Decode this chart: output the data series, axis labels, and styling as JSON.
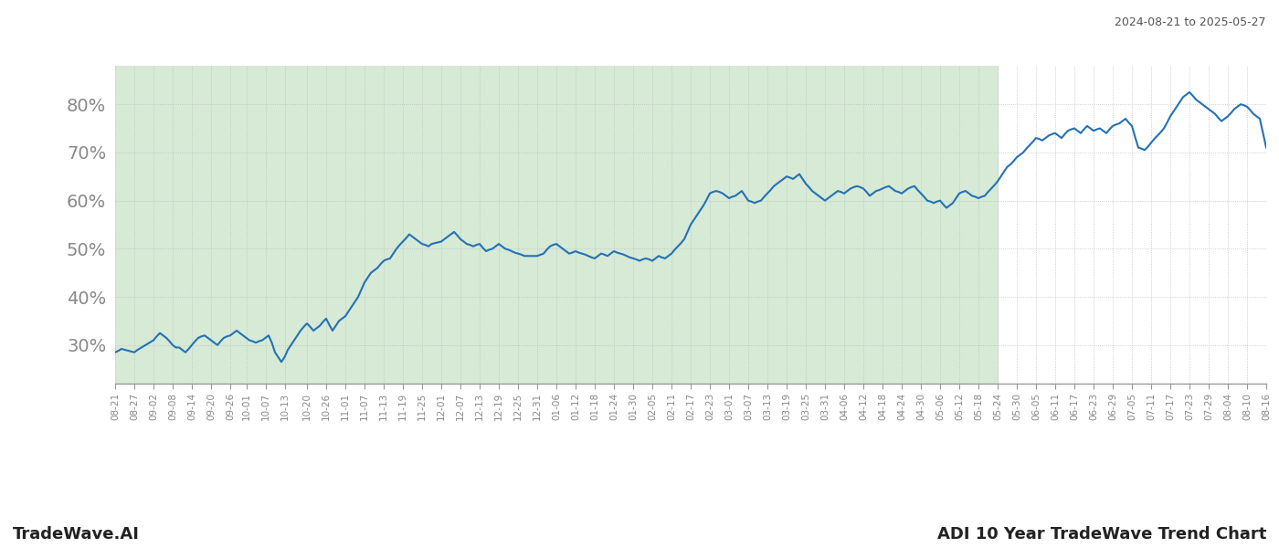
{
  "title_top_right": "2024-08-21 to 2025-05-27",
  "title_bottom_left": "TradeWave.AI",
  "title_bottom_right": "ADI 10 Year TradeWave Trend Chart",
  "line_color": "#2471b5",
  "line_width": 1.5,
  "bg_color": "#ffffff",
  "shaded_region_color": "#d6ead6",
  "shaded_start": "2024-08-21",
  "shaded_end": "2025-05-24",
  "ylim": [
    22,
    88
  ],
  "yticks": [
    30,
    40,
    50,
    60,
    70,
    80
  ],
  "ytick_fontsize": 14,
  "grid_color": "#bbbbbb",
  "grid_style": ":",
  "grid_alpha": 0.9,
  "tick_label_color": "#888888",
  "xtick_fontsize": 7.5,
  "data": [
    [
      "2024-08-21",
      28.5
    ],
    [
      "2024-08-22",
      28.8
    ],
    [
      "2024-08-23",
      29.2
    ],
    [
      "2024-08-27",
      28.5
    ],
    [
      "2024-08-28",
      29.0
    ],
    [
      "2024-09-02",
      31.0
    ],
    [
      "2024-09-03",
      31.8
    ],
    [
      "2024-09-04",
      32.5
    ],
    [
      "2024-09-05",
      32.0
    ],
    [
      "2024-09-06",
      31.5
    ],
    [
      "2024-09-07",
      30.8
    ],
    [
      "2024-09-08",
      30.0
    ],
    [
      "2024-09-09",
      29.5
    ],
    [
      "2024-09-10",
      29.5
    ],
    [
      "2024-09-11",
      29.0
    ],
    [
      "2024-09-12",
      28.5
    ],
    [
      "2024-09-13",
      29.2
    ],
    [
      "2024-09-14",
      30.0
    ],
    [
      "2024-09-15",
      30.8
    ],
    [
      "2024-09-16",
      31.5
    ],
    [
      "2024-09-17",
      31.8
    ],
    [
      "2024-09-18",
      32.0
    ],
    [
      "2024-09-19",
      31.5
    ],
    [
      "2024-09-20",
      31.0
    ],
    [
      "2024-09-21",
      30.5
    ],
    [
      "2024-09-22",
      30.0
    ],
    [
      "2024-09-23",
      30.8
    ],
    [
      "2024-09-24",
      31.5
    ],
    [
      "2024-09-25",
      31.8
    ],
    [
      "2024-09-26",
      32.0
    ],
    [
      "2024-09-27",
      32.5
    ],
    [
      "2024-09-28",
      33.0
    ],
    [
      "2024-09-29",
      32.5
    ],
    [
      "2024-09-30",
      32.0
    ],
    [
      "2024-10-01",
      31.5
    ],
    [
      "2024-10-02",
      31.0
    ],
    [
      "2024-10-03",
      30.8
    ],
    [
      "2024-10-04",
      30.5
    ],
    [
      "2024-10-05",
      30.8
    ],
    [
      "2024-10-06",
      31.0
    ],
    [
      "2024-10-07",
      31.5
    ],
    [
      "2024-10-08",
      32.0
    ],
    [
      "2024-10-09",
      30.5
    ],
    [
      "2024-10-10",
      28.5
    ],
    [
      "2024-10-11",
      27.5
    ],
    [
      "2024-10-12",
      26.5
    ],
    [
      "2024-10-13",
      27.5
    ],
    [
      "2024-10-14",
      29.0
    ],
    [
      "2024-10-15",
      30.0
    ],
    [
      "2024-10-16",
      31.0
    ],
    [
      "2024-10-17",
      32.0
    ],
    [
      "2024-10-18",
      33.0
    ],
    [
      "2024-10-19",
      33.8
    ],
    [
      "2024-10-20",
      34.5
    ],
    [
      "2024-10-21",
      33.8
    ],
    [
      "2024-10-22",
      33.0
    ],
    [
      "2024-10-23",
      33.5
    ],
    [
      "2024-10-24",
      34.0
    ],
    [
      "2024-10-25",
      34.8
    ],
    [
      "2024-10-26",
      35.5
    ],
    [
      "2024-10-27",
      34.2
    ],
    [
      "2024-10-28",
      33.0
    ],
    [
      "2024-10-29",
      34.0
    ],
    [
      "2024-10-30",
      35.0
    ],
    [
      "2024-11-01",
      36.0
    ],
    [
      "2024-11-02",
      37.0
    ],
    [
      "2024-11-03",
      38.0
    ],
    [
      "2024-11-04",
      39.0
    ],
    [
      "2024-11-05",
      40.0
    ],
    [
      "2024-11-06",
      41.5
    ],
    [
      "2024-11-07",
      43.0
    ],
    [
      "2024-11-08",
      44.0
    ],
    [
      "2024-11-09",
      45.0
    ],
    [
      "2024-11-10",
      45.5
    ],
    [
      "2024-11-11",
      46.0
    ],
    [
      "2024-11-12",
      46.8
    ],
    [
      "2024-11-13",
      47.5
    ],
    [
      "2024-11-14",
      47.8
    ],
    [
      "2024-11-15",
      48.0
    ],
    [
      "2024-11-16",
      49.0
    ],
    [
      "2024-11-17",
      50.0
    ],
    [
      "2024-11-18",
      50.8
    ],
    [
      "2024-11-19",
      51.5
    ],
    [
      "2024-11-20",
      52.2
    ],
    [
      "2024-11-21",
      53.0
    ],
    [
      "2024-11-22",
      52.5
    ],
    [
      "2024-11-23",
      52.0
    ],
    [
      "2024-11-24",
      51.5
    ],
    [
      "2024-11-25",
      51.0
    ],
    [
      "2024-11-26",
      50.8
    ],
    [
      "2024-11-27",
      50.5
    ],
    [
      "2024-11-28",
      51.0
    ],
    [
      "2024-12-01",
      51.5
    ],
    [
      "2024-12-02",
      52.0
    ],
    [
      "2024-12-03",
      52.5
    ],
    [
      "2024-12-04",
      53.0
    ],
    [
      "2024-12-05",
      53.5
    ],
    [
      "2024-12-06",
      52.8
    ],
    [
      "2024-12-07",
      52.0
    ],
    [
      "2024-12-08",
      51.5
    ],
    [
      "2024-12-09",
      51.0
    ],
    [
      "2024-12-10",
      50.8
    ],
    [
      "2024-12-11",
      50.5
    ],
    [
      "2024-12-12",
      50.8
    ],
    [
      "2024-12-13",
      51.0
    ],
    [
      "2024-12-14",
      50.2
    ],
    [
      "2024-12-15",
      49.5
    ],
    [
      "2024-12-16",
      49.8
    ],
    [
      "2024-12-17",
      50.0
    ],
    [
      "2024-12-18",
      50.5
    ],
    [
      "2024-12-19",
      51.0
    ],
    [
      "2024-12-20",
      50.5
    ],
    [
      "2024-12-21",
      50.0
    ],
    [
      "2024-12-22",
      49.8
    ],
    [
      "2024-12-23",
      49.5
    ],
    [
      "2024-12-24",
      49.2
    ],
    [
      "2024-12-25",
      49.0
    ],
    [
      "2024-12-26",
      48.8
    ],
    [
      "2024-12-27",
      48.5
    ],
    [
      "2024-12-28",
      48.5
    ],
    [
      "2024-12-29",
      48.5
    ],
    [
      "2024-12-31",
      48.5
    ],
    [
      "2025-01-02",
      49.0
    ],
    [
      "2025-01-03",
      49.8
    ],
    [
      "2025-01-04",
      50.5
    ],
    [
      "2025-01-05",
      50.8
    ],
    [
      "2025-01-06",
      51.0
    ],
    [
      "2025-01-07",
      50.5
    ],
    [
      "2025-01-08",
      50.0
    ],
    [
      "2025-01-09",
      49.5
    ],
    [
      "2025-01-10",
      49.0
    ],
    [
      "2025-01-11",
      49.2
    ],
    [
      "2025-01-12",
      49.5
    ],
    [
      "2025-01-13",
      49.2
    ],
    [
      "2025-01-14",
      49.0
    ],
    [
      "2025-01-15",
      48.8
    ],
    [
      "2025-01-16",
      48.5
    ],
    [
      "2025-01-17",
      48.2
    ],
    [
      "2025-01-18",
      48.0
    ],
    [
      "2025-01-19",
      48.5
    ],
    [
      "2025-01-20",
      49.0
    ],
    [
      "2025-01-21",
      48.8
    ],
    [
      "2025-01-22",
      48.5
    ],
    [
      "2025-01-23",
      49.0
    ],
    [
      "2025-01-24",
      49.5
    ],
    [
      "2025-01-25",
      49.2
    ],
    [
      "2025-01-26",
      49.0
    ],
    [
      "2025-01-27",
      48.8
    ],
    [
      "2025-01-28",
      48.5
    ],
    [
      "2025-01-29",
      48.2
    ],
    [
      "2025-01-30",
      48.0
    ],
    [
      "2025-01-31",
      47.8
    ],
    [
      "2025-02-01",
      47.5
    ],
    [
      "2025-02-02",
      47.8
    ],
    [
      "2025-02-03",
      48.0
    ],
    [
      "2025-02-04",
      47.8
    ],
    [
      "2025-02-05",
      47.5
    ],
    [
      "2025-02-06",
      48.0
    ],
    [
      "2025-02-07",
      48.5
    ],
    [
      "2025-02-08",
      48.2
    ],
    [
      "2025-02-09",
      48.0
    ],
    [
      "2025-02-10",
      48.5
    ],
    [
      "2025-02-11",
      49.0
    ],
    [
      "2025-02-12",
      49.8
    ],
    [
      "2025-02-13",
      50.5
    ],
    [
      "2025-02-14",
      51.2
    ],
    [
      "2025-02-15",
      52.0
    ],
    [
      "2025-02-16",
      53.5
    ],
    [
      "2025-02-17",
      55.0
    ],
    [
      "2025-02-18",
      56.0
    ],
    [
      "2025-02-19",
      57.0
    ],
    [
      "2025-02-20",
      58.0
    ],
    [
      "2025-02-21",
      59.0
    ],
    [
      "2025-02-22",
      60.2
    ],
    [
      "2025-02-23",
      61.5
    ],
    [
      "2025-02-24",
      61.8
    ],
    [
      "2025-02-25",
      62.0
    ],
    [
      "2025-02-26",
      61.8
    ],
    [
      "2025-02-27",
      61.5
    ],
    [
      "2025-02-28",
      61.0
    ],
    [
      "2025-03-01",
      60.5
    ],
    [
      "2025-03-02",
      60.8
    ],
    [
      "2025-03-03",
      61.0
    ],
    [
      "2025-03-04",
      61.5
    ],
    [
      "2025-03-05",
      62.0
    ],
    [
      "2025-03-06",
      61.0
    ],
    [
      "2025-03-07",
      60.0
    ],
    [
      "2025-03-08",
      59.8
    ],
    [
      "2025-03-09",
      59.5
    ],
    [
      "2025-03-10",
      59.8
    ],
    [
      "2025-03-11",
      60.0
    ],
    [
      "2025-03-12",
      60.8
    ],
    [
      "2025-03-13",
      61.5
    ],
    [
      "2025-03-14",
      62.2
    ],
    [
      "2025-03-15",
      63.0
    ],
    [
      "2025-03-16",
      63.5
    ],
    [
      "2025-03-17",
      64.0
    ],
    [
      "2025-03-18",
      64.5
    ],
    [
      "2025-03-19",
      65.0
    ],
    [
      "2025-03-20",
      64.8
    ],
    [
      "2025-03-21",
      64.5
    ],
    [
      "2025-03-22",
      65.0
    ],
    [
      "2025-03-23",
      65.5
    ],
    [
      "2025-03-24",
      64.5
    ],
    [
      "2025-03-25",
      63.5
    ],
    [
      "2025-03-26",
      62.8
    ],
    [
      "2025-03-27",
      62.0
    ],
    [
      "2025-03-28",
      61.5
    ],
    [
      "2025-03-29",
      61.0
    ],
    [
      "2025-03-30",
      60.5
    ],
    [
      "2025-03-31",
      60.0
    ],
    [
      "2025-04-01",
      60.5
    ],
    [
      "2025-04-02",
      61.0
    ],
    [
      "2025-04-03",
      61.5
    ],
    [
      "2025-04-04",
      62.0
    ],
    [
      "2025-04-05",
      61.8
    ],
    [
      "2025-04-06",
      61.5
    ],
    [
      "2025-04-07",
      62.0
    ],
    [
      "2025-04-08",
      62.5
    ],
    [
      "2025-04-09",
      62.8
    ],
    [
      "2025-04-10",
      63.0
    ],
    [
      "2025-04-11",
      62.8
    ],
    [
      "2025-04-12",
      62.5
    ],
    [
      "2025-04-13",
      61.8
    ],
    [
      "2025-04-14",
      61.0
    ],
    [
      "2025-04-15",
      61.5
    ],
    [
      "2025-04-16",
      62.0
    ],
    [
      "2025-04-17",
      62.2
    ],
    [
      "2025-04-18",
      62.5
    ],
    [
      "2025-04-19",
      62.8
    ],
    [
      "2025-04-20",
      63.0
    ],
    [
      "2025-04-21",
      62.5
    ],
    [
      "2025-04-22",
      62.0
    ],
    [
      "2025-04-23",
      61.8
    ],
    [
      "2025-04-24",
      61.5
    ],
    [
      "2025-04-25",
      62.0
    ],
    [
      "2025-04-26",
      62.5
    ],
    [
      "2025-04-27",
      62.8
    ],
    [
      "2025-04-28",
      63.0
    ],
    [
      "2025-04-29",
      62.2
    ],
    [
      "2025-04-30",
      61.5
    ],
    [
      "2025-05-01",
      60.8
    ],
    [
      "2025-05-02",
      60.0
    ],
    [
      "2025-05-03",
      59.8
    ],
    [
      "2025-05-04",
      59.5
    ],
    [
      "2025-05-05",
      59.8
    ],
    [
      "2025-05-06",
      60.0
    ],
    [
      "2025-05-07",
      59.2
    ],
    [
      "2025-05-08",
      58.5
    ],
    [
      "2025-05-09",
      59.0
    ],
    [
      "2025-05-10",
      59.5
    ],
    [
      "2025-05-11",
      60.5
    ],
    [
      "2025-05-12",
      61.5
    ],
    [
      "2025-05-13",
      61.8
    ],
    [
      "2025-05-14",
      62.0
    ],
    [
      "2025-05-15",
      61.5
    ],
    [
      "2025-05-16",
      61.0
    ],
    [
      "2025-05-17",
      60.8
    ],
    [
      "2025-05-18",
      60.5
    ],
    [
      "2025-05-19",
      60.8
    ],
    [
      "2025-05-20",
      61.0
    ],
    [
      "2025-05-21",
      61.8
    ],
    [
      "2025-05-22",
      62.5
    ],
    [
      "2025-05-23",
      63.2
    ],
    [
      "2025-05-24",
      64.0
    ],
    [
      "2025-05-25",
      65.0
    ],
    [
      "2025-05-26",
      66.0
    ],
    [
      "2025-05-27",
      67.0
    ],
    [
      "2025-05-28",
      67.5
    ],
    [
      "2025-05-29",
      68.2
    ],
    [
      "2025-05-30",
      69.0
    ],
    [
      "2025-06-01",
      70.0
    ],
    [
      "2025-06-02",
      70.8
    ],
    [
      "2025-06-03",
      71.5
    ],
    [
      "2025-06-04",
      72.2
    ],
    [
      "2025-06-05",
      73.0
    ],
    [
      "2025-06-06",
      72.8
    ],
    [
      "2025-06-07",
      72.5
    ],
    [
      "2025-06-08",
      73.0
    ],
    [
      "2025-06-09",
      73.5
    ],
    [
      "2025-06-10",
      73.8
    ],
    [
      "2025-06-11",
      74.0
    ],
    [
      "2025-06-12",
      73.5
    ],
    [
      "2025-06-13",
      73.0
    ],
    [
      "2025-06-14",
      73.8
    ],
    [
      "2025-06-15",
      74.5
    ],
    [
      "2025-06-16",
      74.8
    ],
    [
      "2025-06-17",
      75.0
    ],
    [
      "2025-06-18",
      74.5
    ],
    [
      "2025-06-19",
      74.0
    ],
    [
      "2025-06-20",
      74.8
    ],
    [
      "2025-06-21",
      75.5
    ],
    [
      "2025-06-22",
      75.0
    ],
    [
      "2025-06-23",
      74.5
    ],
    [
      "2025-06-24",
      74.8
    ],
    [
      "2025-06-25",
      75.0
    ],
    [
      "2025-06-26",
      74.5
    ],
    [
      "2025-06-27",
      74.0
    ],
    [
      "2025-06-28",
      74.8
    ],
    [
      "2025-06-29",
      75.5
    ],
    [
      "2025-06-30",
      75.8
    ],
    [
      "2025-07-01",
      76.0
    ],
    [
      "2025-07-02",
      76.5
    ],
    [
      "2025-07-03",
      77.0
    ],
    [
      "2025-07-04",
      76.2
    ],
    [
      "2025-07-05",
      75.5
    ],
    [
      "2025-07-06",
      73.2
    ],
    [
      "2025-07-07",
      71.0
    ],
    [
      "2025-07-08",
      70.8
    ],
    [
      "2025-07-09",
      70.5
    ],
    [
      "2025-07-10",
      71.2
    ],
    [
      "2025-07-11",
      72.0
    ],
    [
      "2025-07-12",
      72.8
    ],
    [
      "2025-07-13",
      73.5
    ],
    [
      "2025-07-14",
      74.2
    ],
    [
      "2025-07-15",
      75.0
    ],
    [
      "2025-07-16",
      76.2
    ],
    [
      "2025-07-17",
      77.5
    ],
    [
      "2025-07-18",
      78.5
    ],
    [
      "2025-07-19",
      79.5
    ],
    [
      "2025-07-20",
      80.5
    ],
    [
      "2025-07-21",
      81.5
    ],
    [
      "2025-07-22",
      82.0
    ],
    [
      "2025-07-23",
      82.5
    ],
    [
      "2025-07-24",
      81.8
    ],
    [
      "2025-07-25",
      81.0
    ],
    [
      "2025-07-26",
      80.5
    ],
    [
      "2025-07-27",
      80.0
    ],
    [
      "2025-07-28",
      79.5
    ],
    [
      "2025-07-29",
      79.0
    ],
    [
      "2025-07-30",
      78.5
    ],
    [
      "2025-07-31",
      78.0
    ],
    [
      "2025-08-01",
      77.2
    ],
    [
      "2025-08-02",
      76.5
    ],
    [
      "2025-08-03",
      77.0
    ],
    [
      "2025-08-04",
      77.5
    ],
    [
      "2025-08-05",
      78.2
    ],
    [
      "2025-08-06",
      79.0
    ],
    [
      "2025-08-07",
      79.5
    ],
    [
      "2025-08-08",
      80.0
    ],
    [
      "2025-08-09",
      79.8
    ],
    [
      "2025-08-10",
      79.5
    ],
    [
      "2025-08-11",
      78.8
    ],
    [
      "2025-08-12",
      78.0
    ],
    [
      "2025-08-13",
      77.5
    ],
    [
      "2025-08-14",
      77.0
    ],
    [
      "2025-08-15",
      74.0
    ],
    [
      "2025-08-16",
      71.0
    ]
  ],
  "xtick_labels": [
    [
      "2024-08-21",
      "08-21"
    ],
    [
      "2024-08-27",
      "08-27"
    ],
    [
      "2024-09-02",
      "09-02"
    ],
    [
      "2024-09-08",
      "09-08"
    ],
    [
      "2024-09-14",
      "09-14"
    ],
    [
      "2024-09-20",
      "09-20"
    ],
    [
      "2024-09-26",
      "09-26"
    ],
    [
      "2024-10-01",
      "10-01"
    ],
    [
      "2024-10-07",
      "10-07"
    ],
    [
      "2024-10-13",
      "10-13"
    ],
    [
      "2024-10-20",
      "10-20"
    ],
    [
      "2024-10-26",
      "10-26"
    ],
    [
      "2024-11-01",
      "11-01"
    ],
    [
      "2024-11-07",
      "11-07"
    ],
    [
      "2024-11-13",
      "11-13"
    ],
    [
      "2024-11-19",
      "11-19"
    ],
    [
      "2024-11-25",
      "11-25"
    ],
    [
      "2024-12-01",
      "12-01"
    ],
    [
      "2024-12-07",
      "12-07"
    ],
    [
      "2024-12-13",
      "12-13"
    ],
    [
      "2024-12-19",
      "12-19"
    ],
    [
      "2024-12-25",
      "12-25"
    ],
    [
      "2024-12-31",
      "12-31"
    ],
    [
      "2025-01-06",
      "01-06"
    ],
    [
      "2025-01-12",
      "01-12"
    ],
    [
      "2025-01-18",
      "01-18"
    ],
    [
      "2025-01-24",
      "01-24"
    ],
    [
      "2025-01-30",
      "01-30"
    ],
    [
      "2025-02-05",
      "02-05"
    ],
    [
      "2025-02-11",
      "02-11"
    ],
    [
      "2025-02-17",
      "02-17"
    ],
    [
      "2025-02-23",
      "02-23"
    ],
    [
      "2025-03-01",
      "03-01"
    ],
    [
      "2025-03-07",
      "03-07"
    ],
    [
      "2025-03-13",
      "03-13"
    ],
    [
      "2025-03-19",
      "03-19"
    ],
    [
      "2025-03-25",
      "03-25"
    ],
    [
      "2025-03-31",
      "03-31"
    ],
    [
      "2025-04-06",
      "04-06"
    ],
    [
      "2025-04-12",
      "04-12"
    ],
    [
      "2025-04-18",
      "04-18"
    ],
    [
      "2025-04-24",
      "04-24"
    ],
    [
      "2025-04-30",
      "04-30"
    ],
    [
      "2025-05-06",
      "05-06"
    ],
    [
      "2025-05-12",
      "05-12"
    ],
    [
      "2025-05-18",
      "05-18"
    ],
    [
      "2025-05-24",
      "05-24"
    ],
    [
      "2025-05-30",
      "05-30"
    ],
    [
      "2025-06-05",
      "06-05"
    ],
    [
      "2025-06-11",
      "06-11"
    ],
    [
      "2025-06-17",
      "06-17"
    ],
    [
      "2025-06-23",
      "06-23"
    ],
    [
      "2025-06-29",
      "06-29"
    ],
    [
      "2025-07-05",
      "07-05"
    ],
    [
      "2025-07-11",
      "07-11"
    ],
    [
      "2025-07-17",
      "07-17"
    ],
    [
      "2025-07-23",
      "07-23"
    ],
    [
      "2025-07-29",
      "07-29"
    ],
    [
      "2025-08-04",
      "08-04"
    ],
    [
      "2025-08-10",
      "08-10"
    ],
    [
      "2025-08-16",
      "08-16"
    ]
  ]
}
